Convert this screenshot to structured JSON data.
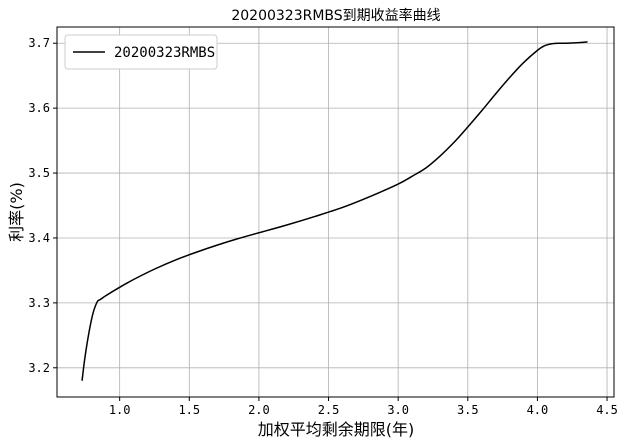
{
  "chart_data": {
    "type": "line",
    "title": "20200323RMBS到期收益率曲线",
    "xlabel": "加权平均剩余期限(年)",
    "ylabel": "利率(%)",
    "xlim": [
      0.55,
      4.55
    ],
    "ylim": [
      3.155,
      3.725
    ],
    "xticks": [
      1.0,
      1.5,
      2.0,
      2.5,
      3.0,
      3.5,
      4.0,
      4.5
    ],
    "xtick_labels": [
      "1.0",
      "1.5",
      "2.0",
      "2.5",
      "3.0",
      "3.5",
      "4.0",
      "4.5"
    ],
    "yticks": [
      3.2,
      3.3,
      3.4,
      3.5,
      3.6,
      3.7
    ],
    "ytick_labels": [
      "3.2",
      "3.3",
      "3.4",
      "3.5",
      "3.6",
      "3.7"
    ],
    "grid": true,
    "legend": "upper-left",
    "series": [
      {
        "name": "20200323RMBS",
        "color": "#000000",
        "x": [
          0.73,
          0.75,
          0.78,
          0.81,
          0.84,
          0.86,
          0.9,
          1.0,
          1.1,
          1.25,
          1.4,
          1.55,
          1.7,
          1.85,
          2.0,
          2.2,
          2.4,
          2.6,
          2.8,
          3.0,
          3.1,
          3.2,
          3.3,
          3.4,
          3.5,
          3.6,
          3.7,
          3.8,
          3.9,
          4.0,
          4.05,
          4.1,
          4.15,
          4.2,
          4.3,
          4.36
        ],
        "y": [
          3.18,
          3.215,
          3.255,
          3.285,
          3.302,
          3.305,
          3.311,
          3.324,
          3.336,
          3.352,
          3.366,
          3.378,
          3.389,
          3.399,
          3.408,
          3.42,
          3.433,
          3.447,
          3.464,
          3.483,
          3.495,
          3.508,
          3.526,
          3.547,
          3.571,
          3.596,
          3.622,
          3.647,
          3.67,
          3.689,
          3.696,
          3.699,
          3.7,
          3.7,
          3.701,
          3.702
        ]
      }
    ]
  }
}
